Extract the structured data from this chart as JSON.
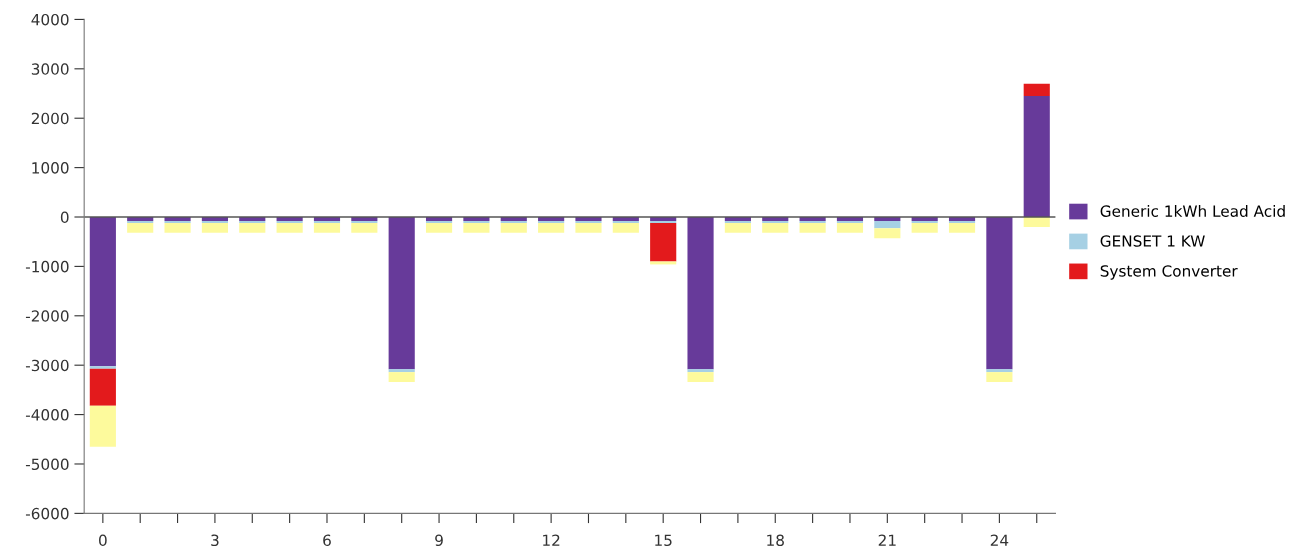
{
  "chart_data": {
    "type": "bar",
    "stacked": true,
    "categories": [
      "0",
      null,
      null,
      "3",
      null,
      null,
      "6",
      null,
      null,
      "9",
      null,
      null,
      "12",
      null,
      null,
      "15",
      null,
      null,
      "18",
      null,
      null,
      "21",
      null,
      null,
      "24",
      null
    ],
    "series": [
      {
        "name": "Generic 1kWh Lead Acid",
        "color": "#673a9a",
        "values": [
          -3020,
          -80,
          -80,
          -80,
          -80,
          -80,
          -80,
          -80,
          -3080,
          -80,
          -80,
          -80,
          -80,
          -80,
          -80,
          -80,
          -3080,
          -80,
          -80,
          -80,
          -80,
          -80,
          -80,
          -80,
          -3080,
          2450
        ]
      },
      {
        "name": "GENSET 1 KW",
        "color": "#a6d0e4",
        "values": [
          -50,
          -40,
          -40,
          -40,
          -40,
          -40,
          -40,
          -40,
          -60,
          -40,
          -40,
          -40,
          -40,
          -40,
          -40,
          -40,
          -60,
          -40,
          -40,
          -40,
          -40,
          -150,
          -40,
          -40,
          -60,
          0
        ]
      },
      {
        "name": "System Converter",
        "color": "#e31a1c",
        "values": [
          -750,
          0,
          0,
          0,
          0,
          0,
          0,
          0,
          0,
          0,
          0,
          0,
          0,
          0,
          0,
          -780,
          0,
          0,
          0,
          0,
          0,
          0,
          0,
          0,
          0,
          250
        ]
      },
      {
        "color": "#fdfa9c",
        "values": [
          -830,
          -200,
          -200,
          -200,
          -200,
          -200,
          -200,
          -200,
          -200,
          -200,
          -200,
          -200,
          -200,
          -200,
          -200,
          -60,
          -200,
          -200,
          -200,
          -200,
          -200,
          -200,
          -200,
          -200,
          -200,
          -200
        ]
      }
    ],
    "ylim": [
      -6000,
      4000
    ],
    "yticks": [
      -6000,
      -5000,
      -4000,
      -3000,
      -2000,
      -1000,
      0,
      1000,
      2000,
      3000,
      4000
    ],
    "ref_lines": [
      {
        "axis": "y",
        "value": 0,
        "color": "#555555"
      }
    ],
    "grid": false,
    "legend": "right"
  }
}
